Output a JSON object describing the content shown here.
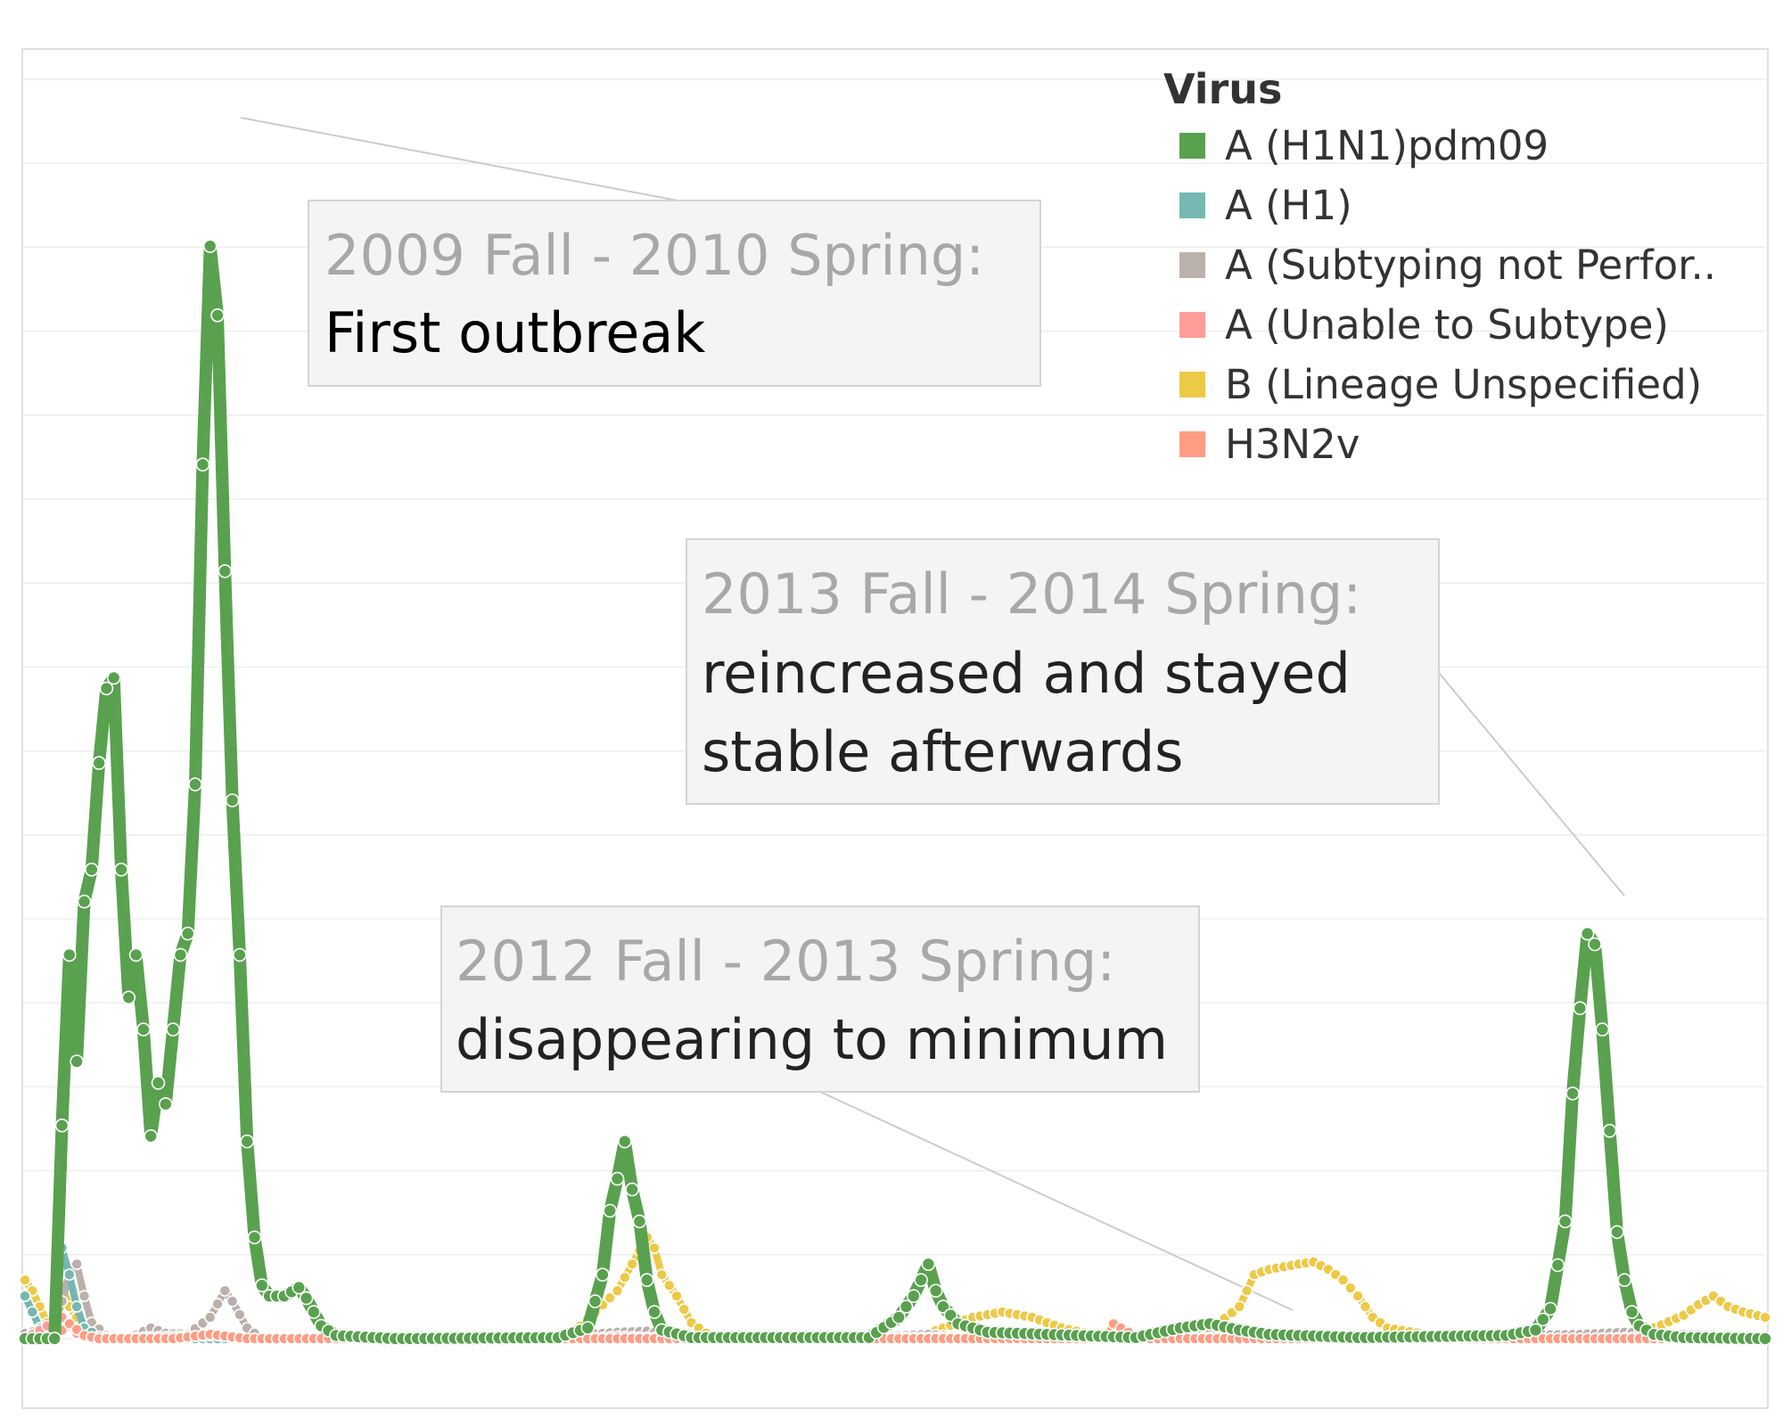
{
  "chart_data": {
    "type": "line",
    "title": "",
    "xlabel": "",
    "ylabel": "",
    "ylim": [
      0,
      1160
    ],
    "legend": {
      "title": "Virus",
      "placement": "top-right",
      "entries": [
        {
          "label": "A (H1N1)pdm09",
          "color": "#59a14f"
        },
        {
          "label": "A (H1)",
          "color": "#76b7b2"
        },
        {
          "label": "A (Subtyping not Perfor..",
          "color": "#bab0ac"
        },
        {
          "label": "A (Unable to Subtype)",
          "color": "#ff9d9a"
        },
        {
          "label": "B (Lineage Unspecified)",
          "color": "#edc948"
        },
        {
          "label": "H3N2v",
          "color": "#ff9d84"
        }
      ]
    },
    "x_points": 236,
    "series": [
      {
        "name": "A (H1N1)pdm09",
        "color": "#59a14f",
        "keys": [
          [
            0,
            0
          ],
          [
            4,
            0
          ],
          [
            5,
            200
          ],
          [
            6,
            360
          ],
          [
            7,
            260
          ],
          [
            8,
            410
          ],
          [
            9,
            440
          ],
          [
            10,
            540
          ],
          [
            11,
            610
          ],
          [
            12,
            620
          ],
          [
            13,
            440
          ],
          [
            14,
            320
          ],
          [
            15,
            360
          ],
          [
            16,
            290
          ],
          [
            17,
            190
          ],
          [
            18,
            240
          ],
          [
            19,
            220
          ],
          [
            20,
            290
          ],
          [
            21,
            360
          ],
          [
            22,
            380
          ],
          [
            23,
            520
          ],
          [
            24,
            820
          ],
          [
            25,
            1025
          ],
          [
            26,
            960
          ],
          [
            27,
            720
          ],
          [
            28,
            505
          ],
          [
            29,
            360
          ],
          [
            30,
            185
          ],
          [
            31,
            95
          ],
          [
            32,
            50
          ],
          [
            33,
            40
          ],
          [
            34,
            40
          ],
          [
            35,
            40
          ],
          [
            37,
            48
          ],
          [
            38,
            38
          ],
          [
            39,
            25
          ],
          [
            40,
            12
          ],
          [
            42,
            3
          ],
          [
            50,
            0
          ],
          [
            72,
            1
          ],
          [
            76,
            10
          ],
          [
            78,
            60
          ],
          [
            79,
            120
          ],
          [
            80,
            150
          ],
          [
            81,
            185
          ],
          [
            82,
            140
          ],
          [
            83,
            110
          ],
          [
            84,
            55
          ],
          [
            85,
            25
          ],
          [
            86,
            8
          ],
          [
            90,
            1
          ],
          [
            114,
            1
          ],
          [
            118,
            20
          ],
          [
            120,
            40
          ],
          [
            122,
            70
          ],
          [
            123,
            45
          ],
          [
            124,
            30
          ],
          [
            126,
            14
          ],
          [
            130,
            6
          ],
          [
            150,
            1
          ],
          [
            156,
            10
          ],
          [
            160,
            14
          ],
          [
            164,
            8
          ],
          [
            168,
            4
          ],
          [
            180,
            1
          ],
          [
            200,
            3
          ],
          [
            204,
            8
          ],
          [
            206,
            28
          ],
          [
            208,
            110
          ],
          [
            209,
            230
          ],
          [
            210,
            310
          ],
          [
            211,
            380
          ],
          [
            212,
            370
          ],
          [
            213,
            290
          ],
          [
            214,
            195
          ],
          [
            215,
            100
          ],
          [
            216,
            55
          ],
          [
            217,
            25
          ],
          [
            218,
            12
          ],
          [
            220,
            4
          ],
          [
            224,
            1
          ],
          [
            235,
            0
          ]
        ]
      },
      {
        "name": "A (H1)",
        "color": "#76b7b2",
        "keys": [
          [
            0,
            40
          ],
          [
            1,
            25
          ],
          [
            2,
            10
          ],
          [
            3,
            4
          ],
          [
            4,
            3
          ],
          [
            5,
            85
          ],
          [
            6,
            60
          ],
          [
            7,
            30
          ],
          [
            8,
            10
          ],
          [
            10,
            2
          ],
          [
            12,
            0
          ],
          [
            50,
            0
          ],
          [
            235,
            0
          ]
        ]
      },
      {
        "name": "A (Subtyping not Perfor..",
        "color": "#bab0ac",
        "keys": [
          [
            0,
            5
          ],
          [
            4,
            10
          ],
          [
            6,
            60
          ],
          [
            7,
            70
          ],
          [
            8,
            40
          ],
          [
            9,
            15
          ],
          [
            11,
            3
          ],
          [
            14,
            0
          ],
          [
            17,
            10
          ],
          [
            19,
            5
          ],
          [
            22,
            4
          ],
          [
            25,
            20
          ],
          [
            27,
            45
          ],
          [
            28,
            35
          ],
          [
            30,
            10
          ],
          [
            32,
            0
          ],
          [
            70,
            0
          ],
          [
            76,
            4
          ],
          [
            80,
            6
          ],
          [
            84,
            7
          ],
          [
            88,
            2
          ],
          [
            110,
            0
          ],
          [
            122,
            4
          ],
          [
            126,
            2
          ],
          [
            140,
            0
          ],
          [
            156,
            2
          ],
          [
            162,
            5
          ],
          [
            168,
            3
          ],
          [
            180,
            1
          ],
          [
            200,
            3
          ],
          [
            210,
            4
          ],
          [
            216,
            6
          ],
          [
            222,
            4
          ],
          [
            230,
            3
          ],
          [
            235,
            0
          ]
        ]
      },
      {
        "name": "A (Unable to Subtype)",
        "color": "#ff9d9a",
        "keys": [
          [
            0,
            0
          ],
          [
            5,
            20
          ],
          [
            6,
            12
          ],
          [
            7,
            5
          ],
          [
            9,
            0
          ],
          [
            26,
            3
          ],
          [
            30,
            0
          ],
          [
            76,
            0
          ],
          [
            80,
            2
          ],
          [
            85,
            1
          ],
          [
            90,
            0
          ],
          [
            125,
            1
          ],
          [
            128,
            0
          ],
          [
            146,
            0
          ],
          [
            147,
            5
          ],
          [
            148,
            3
          ],
          [
            150,
            0
          ],
          [
            160,
            1
          ],
          [
            166,
            2
          ],
          [
            170,
            0
          ],
          [
            210,
            0
          ],
          [
            218,
            1
          ],
          [
            222,
            0
          ],
          [
            235,
            0
          ]
        ]
      },
      {
        "name": "B (Lineage Unspecified)",
        "color": "#edc948",
        "keys": [
          [
            0,
            55
          ],
          [
            1,
            45
          ],
          [
            2,
            30
          ],
          [
            3,
            15
          ],
          [
            4,
            10
          ],
          [
            5,
            50
          ],
          [
            6,
            30
          ],
          [
            7,
            20
          ],
          [
            8,
            8
          ],
          [
            10,
            2
          ],
          [
            14,
            0
          ],
          [
            70,
            0
          ],
          [
            74,
            5
          ],
          [
            77,
            25
          ],
          [
            80,
            45
          ],
          [
            82,
            70
          ],
          [
            84,
            95
          ],
          [
            85,
            85
          ],
          [
            86,
            60
          ],
          [
            88,
            40
          ],
          [
            90,
            15
          ],
          [
            92,
            5
          ],
          [
            95,
            0
          ],
          [
            120,
            0
          ],
          [
            128,
            20
          ],
          [
            132,
            25
          ],
          [
            136,
            20
          ],
          [
            140,
            10
          ],
          [
            144,
            4
          ],
          [
            150,
            1
          ],
          [
            156,
            2
          ],
          [
            160,
            8
          ],
          [
            164,
            30
          ],
          [
            166,
            60
          ],
          [
            168,
            65
          ],
          [
            172,
            70
          ],
          [
            174,
            72
          ],
          [
            176,
            65
          ],
          [
            178,
            55
          ],
          [
            180,
            40
          ],
          [
            182,
            20
          ],
          [
            184,
            10
          ],
          [
            190,
            3
          ],
          [
            200,
            1
          ],
          [
            210,
            1
          ],
          [
            216,
            3
          ],
          [
            220,
            10
          ],
          [
            222,
            16
          ],
          [
            224,
            22
          ],
          [
            226,
            32
          ],
          [
            228,
            40
          ],
          [
            230,
            30
          ],
          [
            232,
            25
          ],
          [
            235,
            20
          ]
        ]
      },
      {
        "name": "H3N2v",
        "color": "#ff9d84",
        "keys": [
          [
            0,
            0
          ],
          [
            4,
            0
          ],
          [
            5,
            8
          ],
          [
            6,
            14
          ],
          [
            8,
            3
          ],
          [
            10,
            0
          ],
          [
            20,
            0
          ],
          [
            25,
            4
          ],
          [
            30,
            0
          ],
          [
            146,
            0
          ],
          [
            147,
            14
          ],
          [
            148,
            10
          ],
          [
            150,
            2
          ],
          [
            152,
            0
          ],
          [
            235,
            0
          ]
        ]
      }
    ],
    "annotations": [
      {
        "heading": "2009 Fall - 2010 Spring:",
        "lines": [
          "First outbreak"
        ]
      },
      {
        "heading": "2013 Fall - 2014 Spring:",
        "lines": [
          "reincreased and stayed",
          "stable afterwards"
        ]
      },
      {
        "heading": "2012 Fall - 2013 Spring:",
        "lines": [
          "disappearing to minimum"
        ]
      }
    ]
  }
}
